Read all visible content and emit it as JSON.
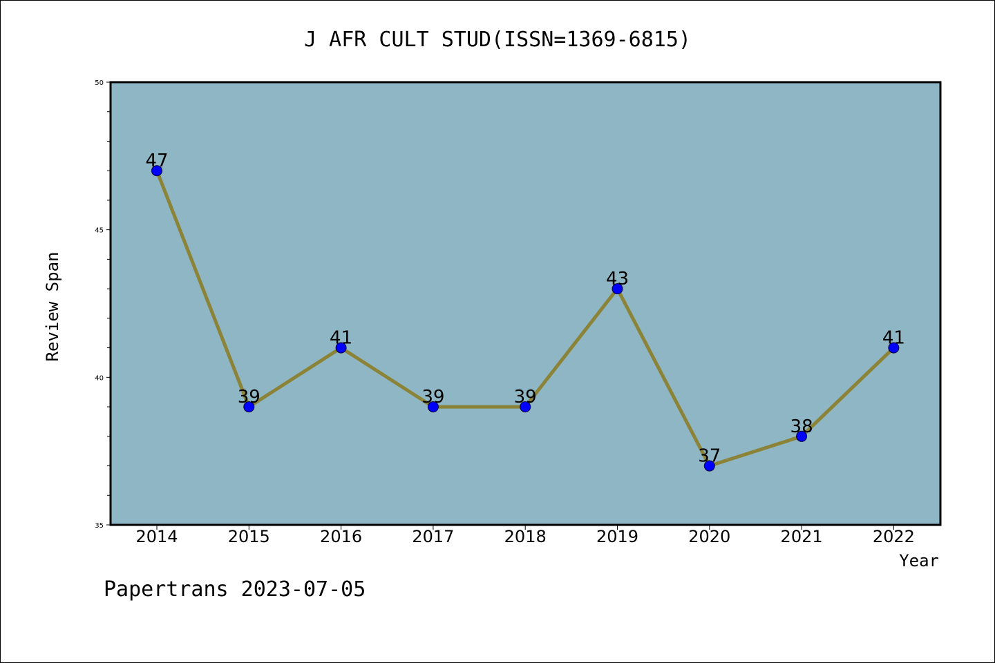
{
  "chart_data": {
    "type": "line",
    "title": "J AFR CULT STUD(ISSN=1369-6815)",
    "xlabel": "Year",
    "ylabel": "Review Span",
    "categories": [
      "2014",
      "2015",
      "2016",
      "2017",
      "2018",
      "2019",
      "2020",
      "2021",
      "2022"
    ],
    "series": [
      {
        "values": [
          47,
          39,
          41,
          39,
          39,
          43,
          37,
          38,
          41
        ]
      }
    ],
    "data_labels": [
      "47",
      "39",
      "41",
      "39",
      "39",
      "43",
      "37",
      "38",
      "41"
    ],
    "ylim": [
      35,
      50
    ],
    "yticks": [
      "35",
      "40",
      "45",
      "50"
    ],
    "grid": false,
    "colors": {
      "plot_background": "#8fb6c4",
      "line": "#8b8438",
      "marker": "#0000ff"
    }
  },
  "footer": {
    "text": "Papertrans 2023-07-05"
  }
}
